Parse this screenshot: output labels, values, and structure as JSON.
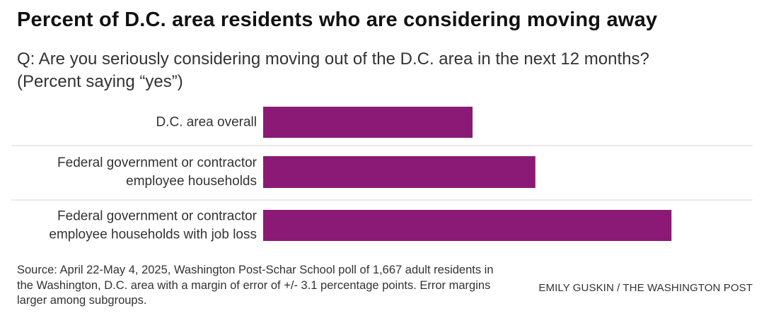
{
  "header": {
    "title": "Percent of D.C. area residents who are considering moving away",
    "subtitle_lines": [
      "Q: Are you seriously considering moving out of the D.C. area in the next 12 months?",
      "(Percent saying “yes”)"
    ]
  },
  "chart_data": {
    "type": "bar",
    "orientation": "horizontal",
    "categories": [
      [
        "D.C. area overall"
      ],
      [
        "Federal government or contractor",
        "employee households"
      ],
      [
        "Federal government or contractor",
        "employee households with job loss"
      ]
    ],
    "values": [
      20,
      26,
      39
    ],
    "xlim": [
      0,
      100
    ],
    "title": "",
    "xlabel": "",
    "ylabel": "",
    "grid": false,
    "bar_color": "#8a1a75",
    "separator_color": "#d6d6d6"
  },
  "footer": {
    "source": "Source: April 22-May 4, 2025, Washington Post-Schar School poll of 1,667 adult residents in the Washington, D.C. area with a margin of error of +/- 3.1 percentage points. Error margins larger among subgroups.",
    "credit": "EMILY GUSKIN / THE WASHINGTON POST"
  }
}
